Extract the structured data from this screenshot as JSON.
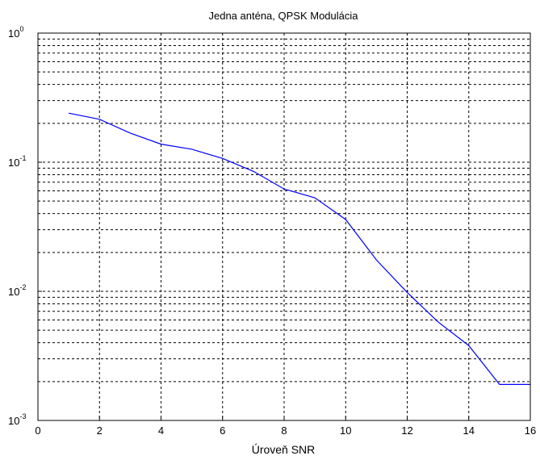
{
  "chart_data": {
    "type": "line",
    "title": "Jedna anténa, QPSK Modulácia",
    "xlabel": "Úroveň SNR",
    "ylabel": "",
    "xlim": [
      0,
      16
    ],
    "ylim": [
      0.001,
      1
    ],
    "yscale": "log",
    "grid": true,
    "x_ticks": [
      0,
      2,
      4,
      6,
      8,
      10,
      12,
      14,
      16
    ],
    "y_ticks": [
      {
        "base": "10",
        "exp": "0",
        "value": 1
      },
      {
        "base": "10",
        "exp": "-1",
        "value": 0.1
      },
      {
        "base": "10",
        "exp": "-2",
        "value": 0.01
      },
      {
        "base": "10",
        "exp": "-3",
        "value": 0.001
      }
    ],
    "series": [
      {
        "color": "#0000ff",
        "x": [
          1,
          2,
          3,
          4,
          5,
          6,
          7,
          8,
          9,
          10,
          11,
          12,
          13,
          14,
          15,
          16
        ],
        "y": [
          0.24,
          0.215,
          0.168,
          0.138,
          0.126,
          0.107,
          0.085,
          0.062,
          0.053,
          0.036,
          0.0175,
          0.0098,
          0.0058,
          0.0038,
          0.0019,
          0.0019
        ]
      }
    ]
  }
}
